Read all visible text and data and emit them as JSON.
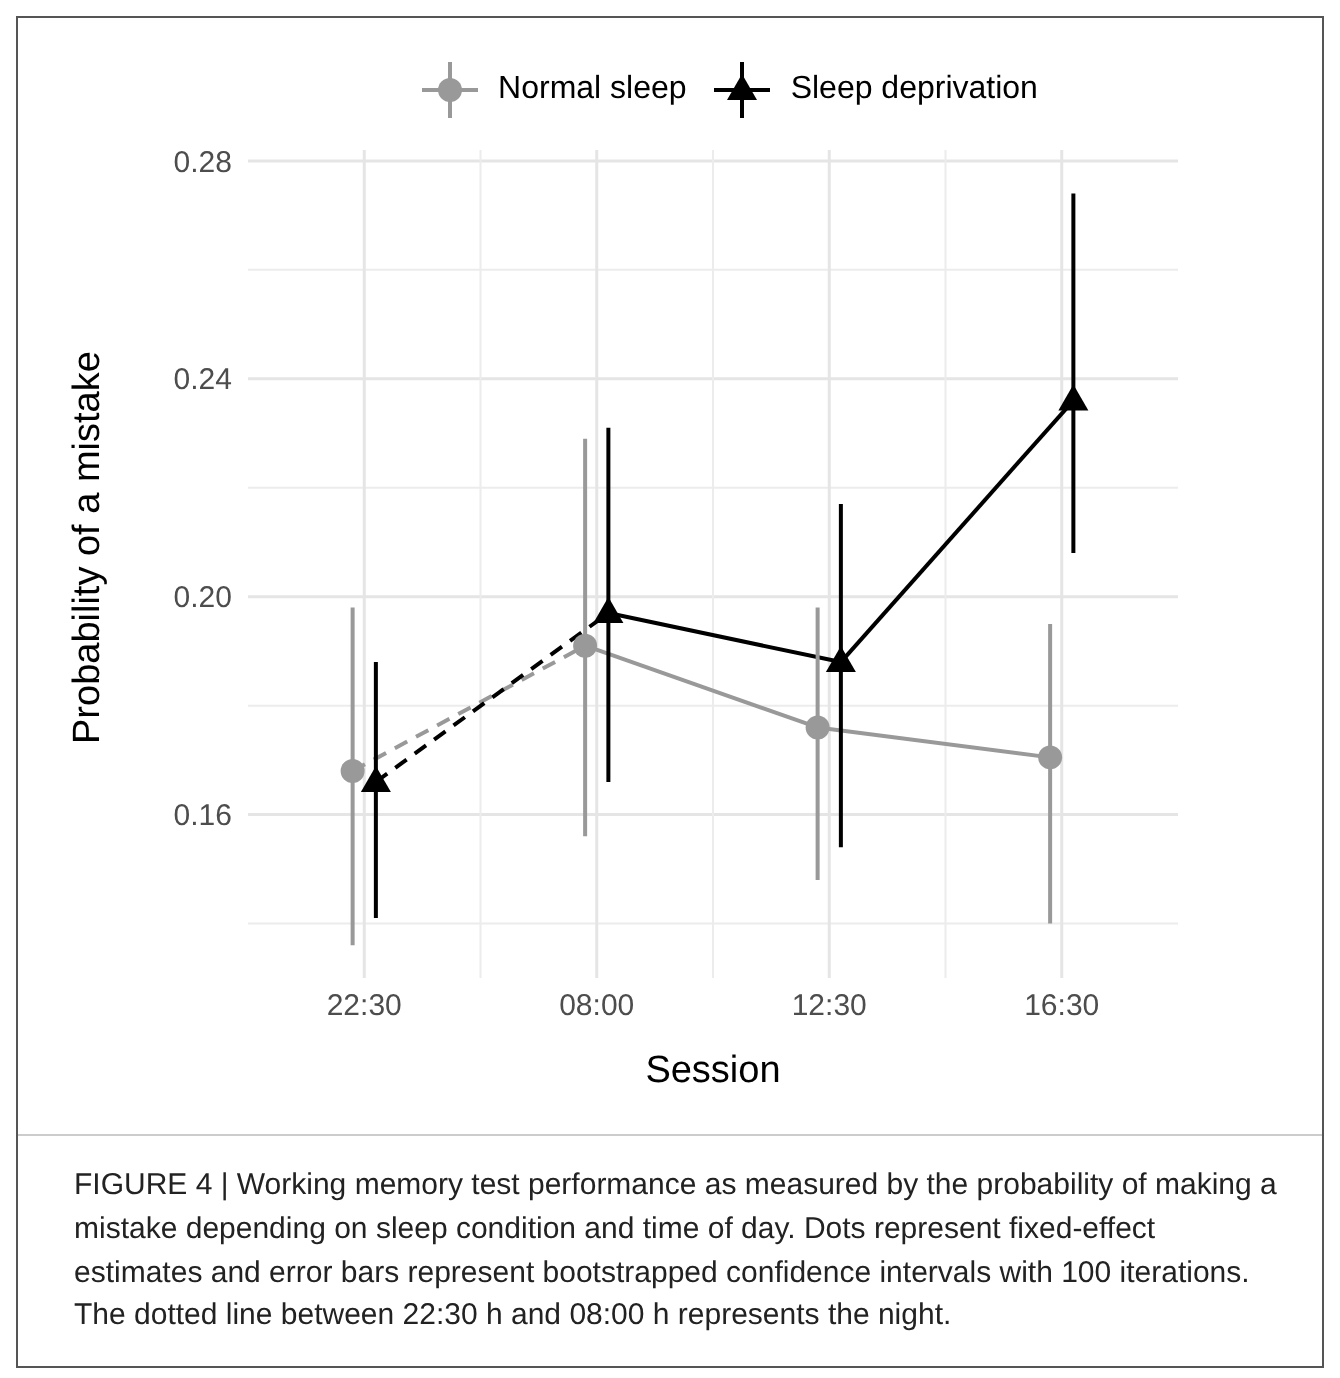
{
  "chart_data": {
    "type": "line",
    "xlabel": "Session",
    "ylabel": "Probability of a mistake",
    "categories": [
      "22:30",
      "08:00",
      "12:30",
      "16:30"
    ],
    "series": [
      {
        "name": "Normal sleep",
        "color": "#999999",
        "marker": "circle",
        "line_style": [
          "dashed",
          "solid",
          "solid"
        ],
        "values": [
          0.168,
          0.191,
          0.176,
          0.1705
        ],
        "errors": [
          [
            0.136,
            0.198
          ],
          [
            0.156,
            0.229
          ],
          [
            0.148,
            0.198
          ],
          [
            0.14,
            0.195
          ]
        ]
      },
      {
        "name": "Sleep deprivation",
        "color": "#000000",
        "marker": "triangle",
        "line_style": [
          "dashed",
          "solid",
          "solid"
        ],
        "values": [
          0.166,
          0.197,
          0.188,
          0.236
        ],
        "errors": [
          [
            0.141,
            0.188
          ],
          [
            0.166,
            0.231
          ],
          [
            0.154,
            0.217
          ],
          [
            0.208,
            0.274
          ]
        ]
      }
    ],
    "ylim": [
      0.13,
      0.282
    ],
    "yticks": [
      {
        "value": 0.16,
        "label": "0.16"
      },
      {
        "value": 0.2,
        "label": "0.20"
      },
      {
        "value": 0.24,
        "label": "0.24"
      },
      {
        "value": 0.28,
        "label": "0.28"
      }
    ],
    "grid": true,
    "legend": "top",
    "annotations": [
      "FIGURE 4 | Working memory test performance as measured by the probability of making a mistake depending on sleep condition and time of day. Dots represent fixed-effect estimates and error bars represent bootstrapped confidence intervals with 100 iterations. The dotted line between 22:30 h and 08:00 h represents the night."
    ]
  }
}
